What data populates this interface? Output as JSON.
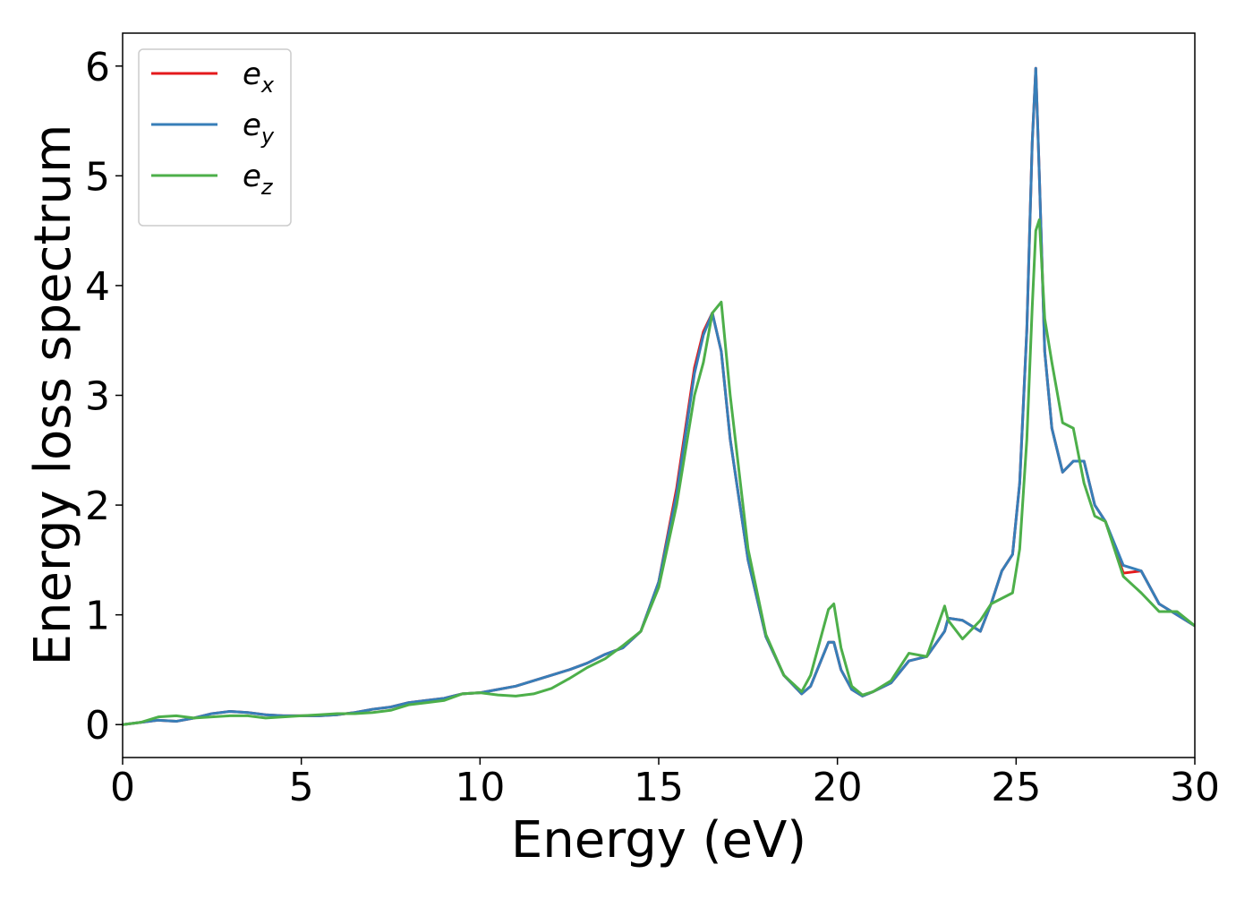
{
  "chart_data": {
    "type": "line",
    "xlabel": "Energy (eV)",
    "ylabel": "Energy loss spectrum",
    "xlim": [
      0,
      30
    ],
    "ylim": [
      -0.3,
      6.3
    ],
    "xticks": [
      0,
      5,
      10,
      15,
      20,
      25,
      30
    ],
    "yticks": [
      0,
      1,
      2,
      3,
      4,
      5,
      6
    ],
    "legend": "upper left",
    "x": [
      0,
      0.5,
      1,
      1.5,
      2,
      2.5,
      3,
      3.5,
      4,
      4.5,
      5,
      5.5,
      6,
      6.5,
      7,
      7.5,
      8,
      8.5,
      9,
      9.5,
      10,
      10.5,
      11,
      11.5,
      12,
      12.5,
      13,
      13.5,
      14,
      14.5,
      15,
      15.5,
      16,
      16.25,
      16.5,
      16.75,
      17,
      17.5,
      18,
      18.5,
      19,
      19.25,
      19.5,
      19.75,
      19.9,
      20.1,
      20.4,
      20.7,
      21,
      21.5,
      22,
      22.5,
      23,
      23.1,
      23.5,
      24,
      24.3,
      24.6,
      24.9,
      25.1,
      25.3,
      25.45,
      25.55,
      25.65,
      25.8,
      26,
      26.3,
      26.6,
      26.9,
      27.2,
      27.5,
      28,
      28.5,
      29,
      29.5,
      30
    ],
    "series": [
      {
        "name": "e_x",
        "color": "#e41a1c",
        "values": [
          0,
          0.02,
          0.04,
          0.03,
          0.06,
          0.1,
          0.12,
          0.11,
          0.09,
          0.08,
          0.08,
          0.08,
          0.09,
          0.11,
          0.14,
          0.16,
          0.2,
          0.22,
          0.24,
          0.28,
          0.29,
          0.32,
          0.35,
          0.4,
          0.45,
          0.5,
          0.56,
          0.64,
          0.7,
          0.85,
          1.3,
          2.15,
          3.25,
          3.58,
          3.75,
          3.4,
          2.6,
          1.5,
          0.8,
          0.45,
          0.28,
          0.35,
          0.55,
          0.75,
          0.75,
          0.5,
          0.32,
          0.26,
          0.3,
          0.38,
          0.58,
          0.62,
          0.85,
          0.97,
          0.95,
          0.85,
          1.1,
          1.4,
          1.55,
          2.2,
          3.6,
          5.3,
          5.98,
          5.0,
          3.4,
          2.7,
          2.3,
          2.4,
          2.4,
          2.0,
          1.85,
          1.38,
          1.4,
          1.1,
          1.0,
          0.9
        ]
      },
      {
        "name": "e_y",
        "color": "#377eb8",
        "values": [
          0,
          0.02,
          0.04,
          0.03,
          0.06,
          0.1,
          0.12,
          0.11,
          0.09,
          0.08,
          0.08,
          0.08,
          0.09,
          0.11,
          0.14,
          0.16,
          0.2,
          0.22,
          0.24,
          0.28,
          0.29,
          0.32,
          0.35,
          0.4,
          0.45,
          0.5,
          0.56,
          0.64,
          0.7,
          0.85,
          1.3,
          2.1,
          3.2,
          3.55,
          3.75,
          3.4,
          2.6,
          1.5,
          0.8,
          0.45,
          0.28,
          0.35,
          0.55,
          0.75,
          0.75,
          0.5,
          0.32,
          0.26,
          0.3,
          0.38,
          0.58,
          0.62,
          0.85,
          0.97,
          0.95,
          0.85,
          1.1,
          1.4,
          1.55,
          2.2,
          3.6,
          5.3,
          5.98,
          5.0,
          3.4,
          2.7,
          2.3,
          2.4,
          2.4,
          2.0,
          1.85,
          1.45,
          1.4,
          1.1,
          1.0,
          0.9
        ]
      },
      {
        "name": "e_z",
        "color": "#4daf4a",
        "values": [
          0,
          0.02,
          0.07,
          0.08,
          0.06,
          0.07,
          0.08,
          0.08,
          0.06,
          0.07,
          0.08,
          0.09,
          0.1,
          0.1,
          0.11,
          0.13,
          0.18,
          0.2,
          0.22,
          0.28,
          0.29,
          0.27,
          0.26,
          0.28,
          0.33,
          0.42,
          0.52,
          0.6,
          0.72,
          0.85,
          1.25,
          2.0,
          3.0,
          3.3,
          3.75,
          3.85,
          3.0,
          1.6,
          0.82,
          0.45,
          0.3,
          0.45,
          0.75,
          1.05,
          1.1,
          0.7,
          0.35,
          0.27,
          0.3,
          0.4,
          0.65,
          0.62,
          1.08,
          0.95,
          0.78,
          0.95,
          1.1,
          1.15,
          1.2,
          1.6,
          2.6,
          3.8,
          4.5,
          4.6,
          3.7,
          3.3,
          2.75,
          2.7,
          2.2,
          1.9,
          1.85,
          1.35,
          1.2,
          1.03,
          1.03,
          0.9
        ]
      }
    ]
  }
}
